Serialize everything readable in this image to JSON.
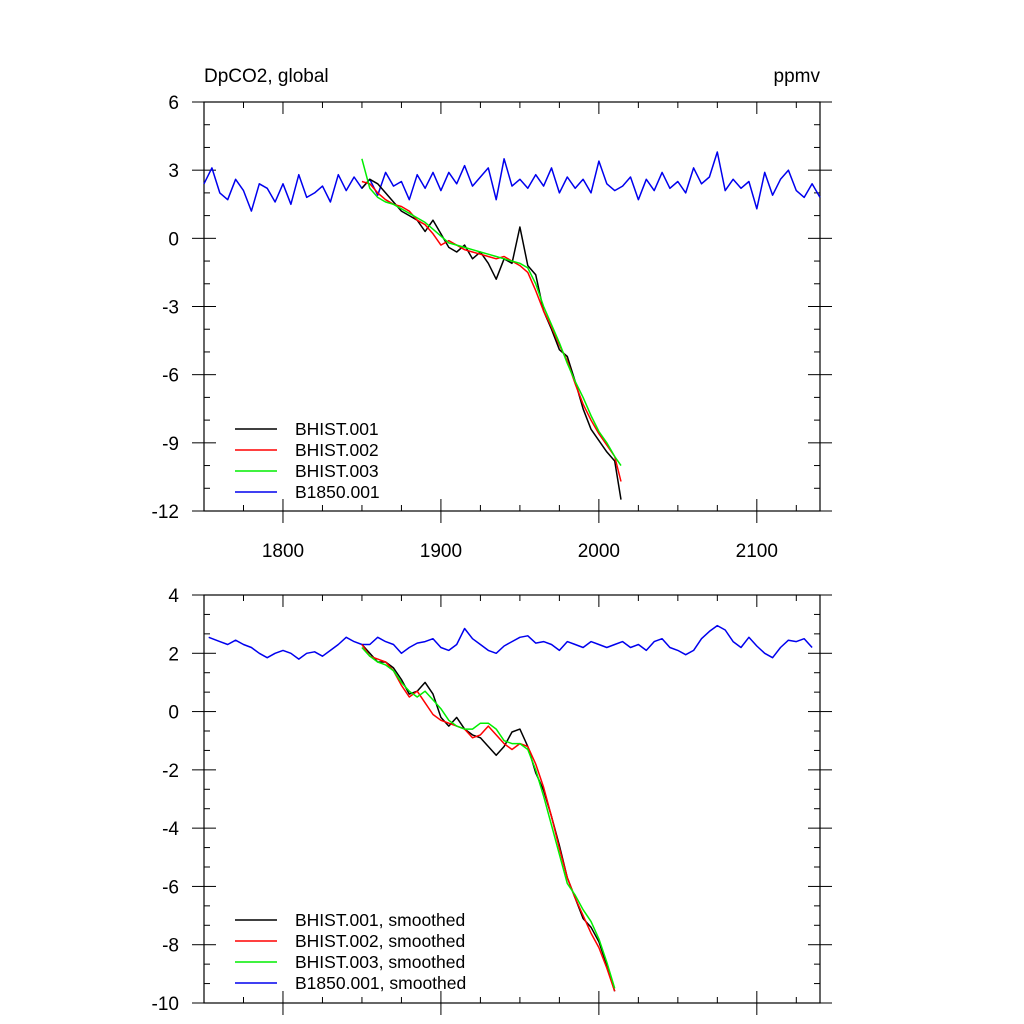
{
  "chart_data": [
    {
      "type": "line",
      "title": "DpCO2, global",
      "units": "ppmv",
      "xlim": [
        1750,
        2140
      ],
      "ylim": [
        -12,
        6
      ],
      "xticks": [
        1800,
        1900,
        2000,
        2100
      ],
      "yticks": [
        6,
        3,
        0,
        -3,
        -6,
        -9,
        -12
      ],
      "legend_position": "bottom-left",
      "series": [
        {
          "name": "BHIST.001",
          "color": "#000000",
          "x": [
            1850,
            1855,
            1860,
            1865,
            1870,
            1875,
            1880,
            1885,
            1890,
            1895,
            1900,
            1905,
            1910,
            1915,
            1920,
            1925,
            1930,
            1935,
            1940,
            1945,
            1950,
            1955,
            1960,
            1965,
            1970,
            1975,
            1980,
            1985,
            1990,
            1995,
            2000,
            2005,
            2010,
            2014
          ],
          "y": [
            2.2,
            2.6,
            2.4,
            2.0,
            1.6,
            1.2,
            1.0,
            0.8,
            0.3,
            0.8,
            0.2,
            -0.4,
            -0.6,
            -0.3,
            -0.9,
            -0.6,
            -1.1,
            -1.8,
            -0.9,
            -1.1,
            0.5,
            -1.2,
            -1.6,
            -3.2,
            -4.0,
            -4.9,
            -5.2,
            -6.3,
            -7.5,
            -8.4,
            -8.9,
            -9.4,
            -9.8,
            -11.5
          ]
        },
        {
          "name": "BHIST.002",
          "color": "#ff0000",
          "x": [
            1850,
            1855,
            1860,
            1865,
            1870,
            1875,
            1880,
            1885,
            1890,
            1895,
            1900,
            1905,
            1910,
            1915,
            1920,
            1925,
            1930,
            1935,
            1940,
            1945,
            1950,
            1955,
            1960,
            1965,
            1970,
            1975,
            1980,
            1985,
            1990,
            1995,
            2000,
            2005,
            2010,
            2014
          ],
          "y": [
            2.5,
            2.4,
            2.0,
            1.7,
            1.5,
            1.4,
            1.2,
            0.8,
            0.6,
            0.2,
            -0.3,
            -0.1,
            -0.3,
            -0.5,
            -0.6,
            -0.7,
            -0.8,
            -0.9,
            -0.8,
            -1.0,
            -1.2,
            -1.5,
            -2.3,
            -3.2,
            -3.9,
            -4.7,
            -5.4,
            -6.4,
            -7.3,
            -8.0,
            -8.6,
            -9.1,
            -9.6,
            -10.7
          ]
        },
        {
          "name": "BHIST.003",
          "color": "#00ee00",
          "x": [
            1850,
            1855,
            1860,
            1865,
            1870,
            1875,
            1880,
            1885,
            1890,
            1895,
            1900,
            1905,
            1910,
            1915,
            1920,
            1925,
            1930,
            1935,
            1940,
            1945,
            1950,
            1955,
            1960,
            1965,
            1970,
            1975,
            1980,
            1985,
            1990,
            1995,
            2000,
            2005,
            2010,
            2014
          ],
          "y": [
            3.5,
            2.2,
            1.8,
            1.6,
            1.5,
            1.3,
            1.1,
            0.9,
            0.7,
            0.4,
            0.1,
            -0.2,
            -0.3,
            -0.4,
            -0.5,
            -0.6,
            -0.7,
            -0.8,
            -0.9,
            -1.0,
            -1.1,
            -1.3,
            -2.0,
            -3.0,
            -3.8,
            -4.6,
            -5.5,
            -6.3,
            -7.0,
            -7.8,
            -8.5,
            -9.0,
            -9.6,
            -10.0
          ]
        },
        {
          "name": "B1850.001",
          "color": "#0000ee",
          "x": [
            1750,
            1755,
            1760,
            1765,
            1770,
            1775,
            1780,
            1785,
            1790,
            1795,
            1800,
            1805,
            1810,
            1815,
            1820,
            1825,
            1830,
            1835,
            1840,
            1845,
            1850,
            1855,
            1860,
            1865,
            1870,
            1875,
            1880,
            1885,
            1890,
            1895,
            1900,
            1905,
            1910,
            1915,
            1920,
            1925,
            1930,
            1935,
            1940,
            1945,
            1950,
            1955,
            1960,
            1965,
            1970,
            1975,
            1980,
            1985,
            1990,
            1995,
            2000,
            2005,
            2010,
            2015,
            2020,
            2025,
            2030,
            2035,
            2040,
            2045,
            2050,
            2055,
            2060,
            2065,
            2070,
            2075,
            2080,
            2085,
            2090,
            2095,
            2100,
            2105,
            2110,
            2115,
            2120,
            2125,
            2130,
            2135,
            2140
          ],
          "y": [
            2.4,
            3.1,
            2.0,
            1.7,
            2.6,
            2.1,
            1.2,
            2.4,
            2.2,
            1.6,
            2.4,
            1.5,
            2.8,
            1.8,
            2.0,
            2.3,
            1.6,
            2.8,
            2.1,
            2.7,
            2.2,
            2.6,
            1.9,
            2.9,
            2.3,
            2.5,
            1.7,
            2.8,
            2.2,
            2.9,
            2.1,
            2.9,
            2.4,
            3.2,
            2.3,
            2.7,
            3.1,
            1.7,
            3.5,
            2.3,
            2.6,
            2.2,
            2.8,
            2.3,
            3.1,
            2.0,
            2.7,
            2.2,
            2.6,
            2.0,
            3.4,
            2.4,
            2.1,
            2.3,
            2.7,
            1.7,
            2.6,
            2.1,
            2.9,
            2.2,
            2.5,
            2.0,
            3.1,
            2.4,
            2.7,
            3.8,
            2.1,
            2.6,
            2.2,
            2.5,
            1.3,
            2.9,
            1.9,
            2.6,
            3.0,
            2.1,
            1.8,
            2.4,
            1.8
          ]
        }
      ]
    },
    {
      "type": "line",
      "xlim": [
        1750,
        2140
      ],
      "ylim": [
        -10,
        4
      ],
      "yticks": [
        4,
        2,
        0,
        -2,
        -4,
        -6,
        -8,
        -10
      ],
      "legend_position": "bottom-left",
      "series": [
        {
          "name": "BHIST.001, smoothed",
          "color": "#000000",
          "x": [
            1850,
            1855,
            1860,
            1865,
            1870,
            1875,
            1880,
            1885,
            1890,
            1895,
            1900,
            1905,
            1910,
            1915,
            1920,
            1925,
            1930,
            1935,
            1940,
            1945,
            1950,
            1955,
            1960,
            1965,
            1970,
            1975,
            1980,
            1985,
            1990,
            1995,
            2000,
            2005,
            2010
          ],
          "y": [
            2.3,
            2.0,
            1.7,
            1.7,
            1.5,
            1.1,
            0.6,
            0.7,
            1.0,
            0.6,
            -0.2,
            -0.5,
            -0.2,
            -0.6,
            -0.8,
            -0.9,
            -1.2,
            -1.5,
            -1.2,
            -0.7,
            -0.6,
            -1.2,
            -2.1,
            -2.7,
            -3.6,
            -4.6,
            -5.7,
            -6.4,
            -7.1,
            -7.4,
            -7.9,
            -8.7,
            -9.6
          ]
        },
        {
          "name": "BHIST.002, smoothed",
          "color": "#ff0000",
          "x": [
            1850,
            1855,
            1860,
            1865,
            1870,
            1875,
            1880,
            1885,
            1890,
            1895,
            1900,
            1905,
            1910,
            1915,
            1920,
            1925,
            1930,
            1935,
            1940,
            1945,
            1950,
            1955,
            1960,
            1965,
            1970,
            1975,
            1980,
            1985,
            1990,
            1995,
            2000,
            2005,
            2010
          ],
          "y": [
            2.3,
            1.9,
            1.8,
            1.7,
            1.4,
            0.9,
            0.5,
            0.7,
            0.3,
            -0.1,
            -0.3,
            -0.4,
            -0.5,
            -0.6,
            -0.9,
            -0.8,
            -0.5,
            -0.8,
            -1.1,
            -1.3,
            -1.1,
            -1.2,
            -1.8,
            -2.6,
            -3.6,
            -4.7,
            -5.7,
            -6.4,
            -7.0,
            -7.6,
            -8.1,
            -8.8,
            -9.6
          ]
        },
        {
          "name": "BHIST.003, smoothed",
          "color": "#00ee00",
          "x": [
            1850,
            1855,
            1860,
            1865,
            1870,
            1875,
            1880,
            1885,
            1890,
            1895,
            1900,
            1905,
            1910,
            1915,
            1920,
            1925,
            1930,
            1935,
            1940,
            1945,
            1950,
            1955,
            1960,
            1965,
            1970,
            1975,
            1980,
            1985,
            1990,
            1995,
            2000,
            2005,
            2010
          ],
          "y": [
            2.2,
            1.9,
            1.7,
            1.6,
            1.4,
            1.0,
            0.7,
            0.5,
            0.7,
            0.4,
            0.1,
            -0.3,
            -0.5,
            -0.6,
            -0.6,
            -0.4,
            -0.4,
            -0.6,
            -1.0,
            -1.1,
            -1.1,
            -1.3,
            -2.0,
            -2.9,
            -3.9,
            -4.9,
            -5.9,
            -6.3,
            -6.8,
            -7.2,
            -7.8,
            -8.6,
            -9.5
          ]
        },
        {
          "name": "B1850.001, smoothed",
          "color": "#0000ee",
          "x": [
            1753,
            1760,
            1765,
            1770,
            1775,
            1780,
            1785,
            1790,
            1795,
            1800,
            1805,
            1810,
            1815,
            1820,
            1825,
            1830,
            1835,
            1840,
            1845,
            1850,
            1855,
            1860,
            1865,
            1870,
            1875,
            1880,
            1885,
            1890,
            1895,
            1900,
            1905,
            1910,
            1915,
            1920,
            1925,
            1930,
            1935,
            1940,
            1945,
            1950,
            1955,
            1960,
            1965,
            1970,
            1975,
            1980,
            1985,
            1990,
            1995,
            2000,
            2005,
            2010,
            2015,
            2020,
            2025,
            2030,
            2035,
            2040,
            2045,
            2050,
            2055,
            2060,
            2065,
            2070,
            2075,
            2080,
            2085,
            2090,
            2095,
            2100,
            2105,
            2110,
            2115,
            2120,
            2125,
            2130,
            2135
          ],
          "y": [
            2.55,
            2.4,
            2.3,
            2.45,
            2.3,
            2.2,
            2.0,
            1.85,
            2.0,
            2.1,
            2.0,
            1.8,
            2.0,
            2.05,
            1.9,
            2.1,
            2.3,
            2.55,
            2.4,
            2.3,
            2.3,
            2.55,
            2.4,
            2.3,
            2.0,
            2.2,
            2.35,
            2.4,
            2.5,
            2.2,
            2.1,
            2.3,
            2.85,
            2.5,
            2.3,
            2.1,
            2.0,
            2.25,
            2.4,
            2.55,
            2.6,
            2.35,
            2.4,
            2.3,
            2.1,
            2.4,
            2.3,
            2.2,
            2.4,
            2.3,
            2.2,
            2.3,
            2.4,
            2.2,
            2.3,
            2.1,
            2.4,
            2.5,
            2.2,
            2.1,
            1.95,
            2.1,
            2.5,
            2.75,
            2.95,
            2.8,
            2.4,
            2.2,
            2.55,
            2.25,
            2.0,
            1.85,
            2.2,
            2.45,
            2.4,
            2.5,
            2.2
          ]
        }
      ]
    }
  ]
}
